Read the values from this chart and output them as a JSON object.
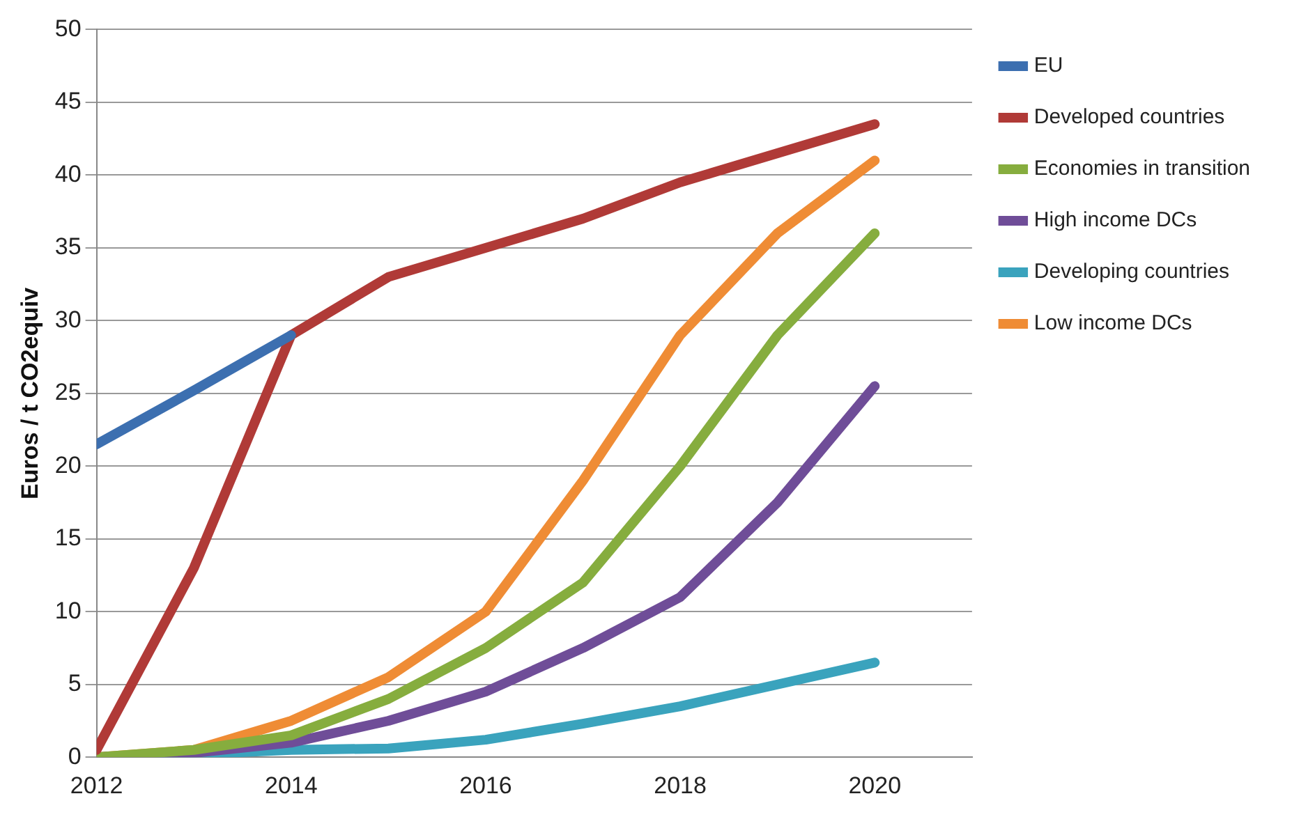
{
  "chart_data": {
    "type": "line",
    "ylabel": "Euros / t CO2equiv",
    "x": [
      2012,
      2013,
      2014,
      2015,
      2016,
      2017,
      2018,
      2019,
      2020
    ],
    "xlim": [
      2012,
      2021
    ],
    "xticks": [
      2012,
      2014,
      2016,
      2018,
      2020
    ],
    "ylim": [
      0,
      50
    ],
    "yticks": [
      0,
      5,
      10,
      15,
      20,
      25,
      30,
      35,
      40,
      45,
      50
    ],
    "grid": "y",
    "legend": "right",
    "marker": "none",
    "line_style": "solid",
    "series": [
      {
        "name": "EU",
        "color": "#3c6fb0",
        "values": [
          21.5,
          25.2,
          29,
          null,
          null,
          null,
          null,
          null,
          null
        ]
      },
      {
        "name": "Developed countries",
        "color": "#b03a37",
        "values": [
          0.5,
          13,
          29,
          33,
          35,
          37,
          39.5,
          41.5,
          43.5
        ]
      },
      {
        "name": "Economies in transition",
        "color": "#86ad3e",
        "values": [
          0,
          0.5,
          1.5,
          4,
          7.5,
          12,
          20,
          29,
          36
        ]
      },
      {
        "name": "High income DCs",
        "color": "#6f4d98",
        "values": [
          0,
          0.3,
          1,
          2.5,
          4.5,
          7.5,
          11,
          17.5,
          25.5
        ]
      },
      {
        "name": "Developing countries",
        "color": "#3aa3bd",
        "values": [
          0,
          0.2,
          0.5,
          0.6,
          1.2,
          2.3,
          3.5,
          5,
          6.5
        ]
      },
      {
        "name": "Low income DCs",
        "color": "#ef8c35",
        "values": [
          0,
          0.5,
          2.5,
          5.5,
          10,
          19,
          29,
          36,
          41
        ]
      }
    ]
  }
}
